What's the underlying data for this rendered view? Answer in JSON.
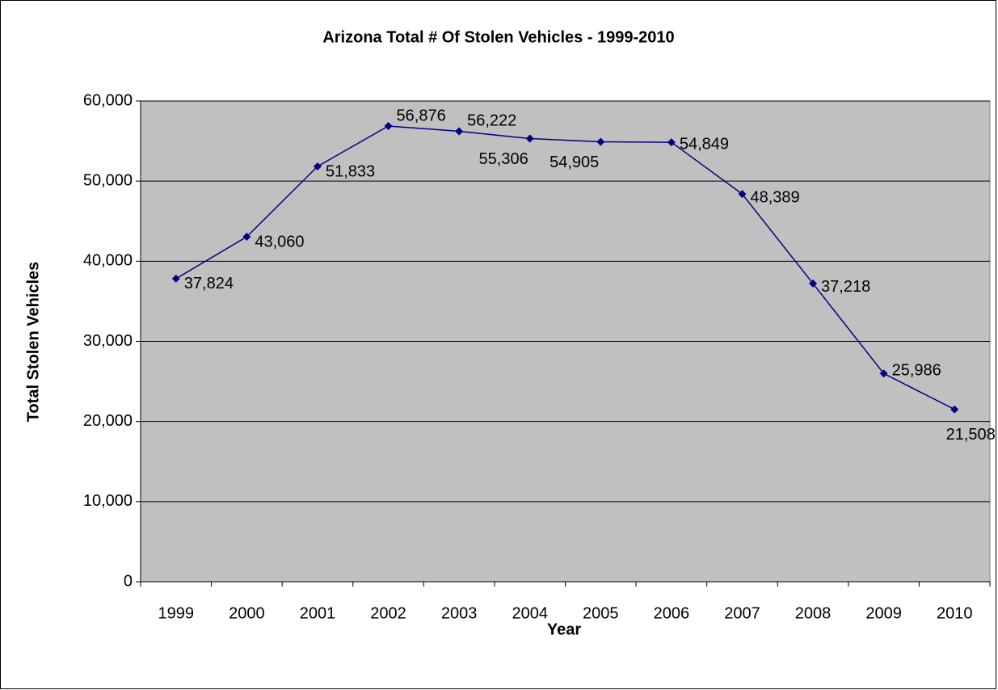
{
  "chart_data": {
    "type": "line",
    "title": "Arizona Total # Of Stolen Vehicles - 1999-2010",
    "x_label": "Year",
    "y_label": "Total Stolen Vehicles",
    "categories": [
      "1999",
      "2000",
      "2001",
      "2002",
      "2003",
      "2004",
      "2005",
      "2006",
      "2007",
      "2008",
      "2009",
      "2010"
    ],
    "series": [
      {
        "name": "Total Stolen Vehicles",
        "color": "#000080",
        "values": [
          37824,
          43060,
          51833,
          56876,
          56222,
          55306,
          54905,
          54849,
          48389,
          37218,
          25986,
          21508
        ],
        "value_labels": [
          "37,824",
          "43,060",
          "51,833",
          "56,876",
          "56,222",
          "55,306",
          "54,905",
          "54,849",
          "48,389",
          "37,218",
          "25,986",
          "21,508"
        ]
      }
    ],
    "ylim": [
      0,
      60000
    ],
    "yticks": [
      0,
      {
        "value": 10000,
        "label": "10,000"
      },
      {
        "value": 20000,
        "label": "20,000"
      },
      {
        "value": 30000,
        "label": "30,000"
      },
      {
        "value": 40000,
        "label": "40,000"
      },
      {
        "value": 50000,
        "label": "50,000"
      },
      {
        "value": 60000,
        "label": "60,000"
      }
    ],
    "grid": true,
    "plot_background": "#c0c0c0"
  }
}
